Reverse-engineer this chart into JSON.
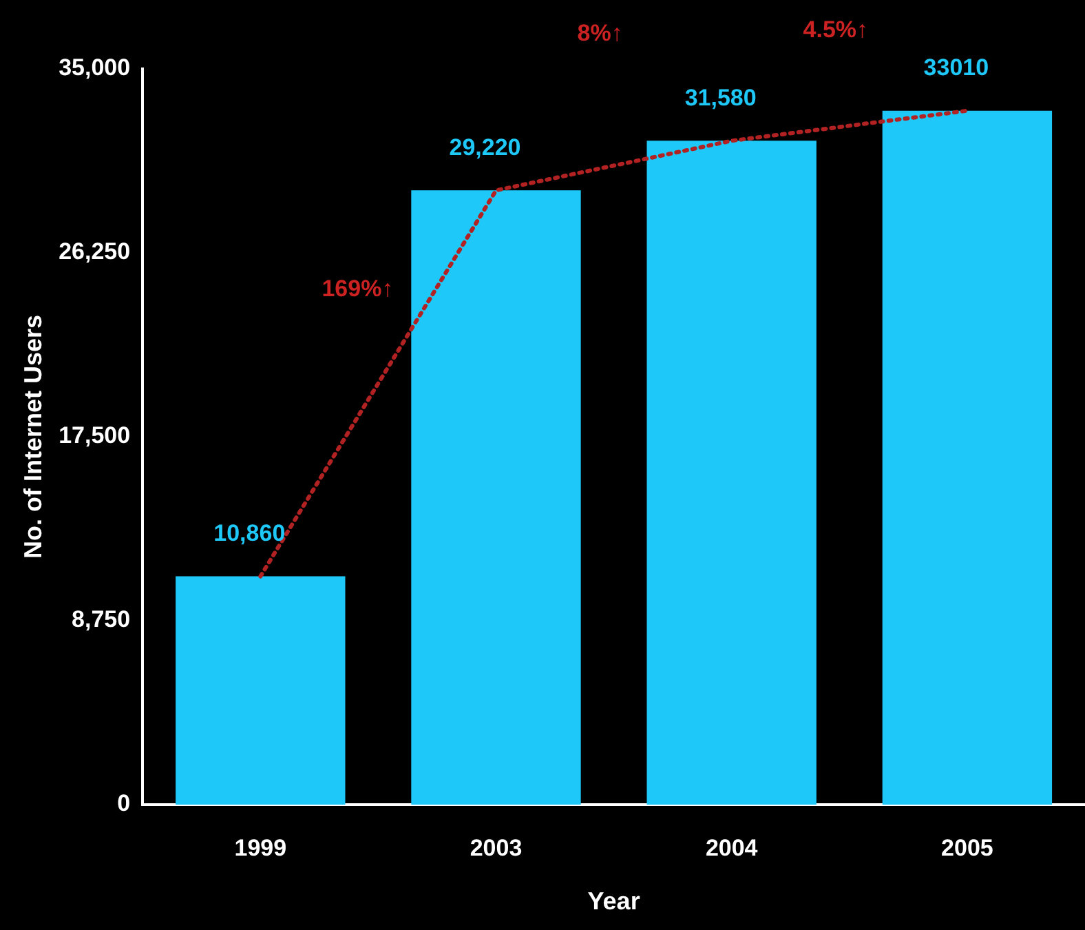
{
  "chart_data": {
    "type": "bar",
    "xlabel": "Year",
    "ylabel": "No. of Internet Users",
    "categories": [
      "1999",
      "2003",
      "2004",
      "2005"
    ],
    "series": [
      {
        "color": "#1ec8f8",
        "values": [
          10860,
          29220,
          31580,
          33010
        ],
        "value_labels": [
          "10,860",
          "29,220",
          "31,580",
          "33010"
        ]
      },
      {
        "type": "line",
        "color": "#b22222",
        "values": [
          10860,
          29220,
          31580,
          33010
        ],
        "line_style": "dotted",
        "marker": "none"
      }
    ],
    "ylim": [
      0,
      35000
    ],
    "yticks": [
      0,
      {
        "value": 8750,
        "label": "8,750"
      },
      {
        "value": 17500,
        "label": "17,500"
      },
      {
        "value": 26250,
        "label": "26,250"
      },
      {
        "value": 35000,
        "label": "35,000"
      }
    ],
    "annotations": [
      "169%↑",
      "8%↑",
      "4.5%↑"
    ],
    "grid": false,
    "legend": false
  }
}
